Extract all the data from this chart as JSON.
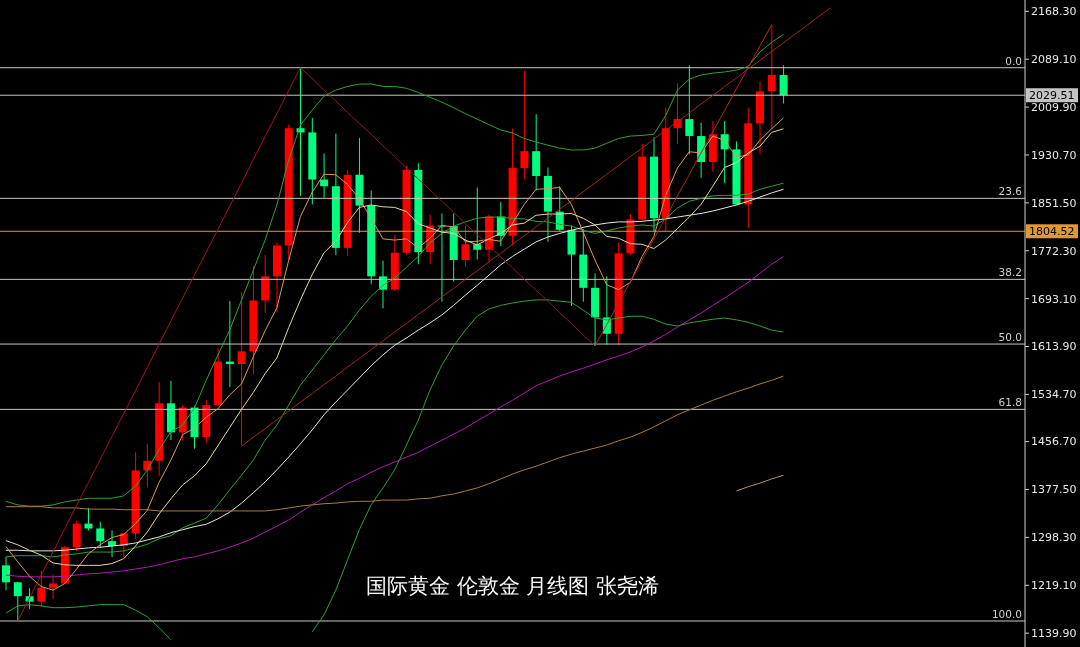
{
  "chart_data": {
    "type": "candlestick",
    "title": "国际黄金 伦敦金 月线图 张尧浠",
    "categories": [
      null,
      null,
      null,
      null,
      null,
      null,
      null,
      null,
      null,
      null,
      null,
      null,
      null,
      null,
      null,
      null,
      null,
      null,
      null,
      null,
      null,
      null,
      null,
      null,
      null,
      null,
      null,
      null,
      null,
      null,
      null,
      null,
      null,
      null,
      null,
      null,
      null,
      null,
      null,
      null,
      null,
      null,
      null,
      null,
      null,
      null,
      null,
      null,
      null,
      null,
      null,
      null,
      null,
      null,
      null,
      null,
      null,
      null,
      null,
      null,
      null,
      null,
      null,
      null,
      null,
      null,
      null,
      null,
      null,
      null,
      null,
      null,
      null,
      null,
      null,
      null,
      null,
      null,
      null,
      null,
      null,
      null,
      null,
      null,
      null,
      null,
      null
    ],
    "ohlc": [
      [
        1252,
        1266,
        1211,
        1224
      ],
      [
        1224,
        1225,
        1160,
        1201
      ],
      [
        1201,
        1214,
        1180,
        1192
      ],
      [
        1192,
        1243,
        1183,
        1215
      ],
      [
        1215,
        1237,
        1196,
        1222
      ],
      [
        1222,
        1284,
        1221,
        1282
      ],
      [
        1282,
        1326,
        1276,
        1321
      ],
      [
        1321,
        1347,
        1310,
        1313
      ],
      [
        1313,
        1324,
        1281,
        1292
      ],
      [
        1292,
        1310,
        1266,
        1284
      ],
      [
        1284,
        1306,
        1266,
        1305
      ],
      [
        1305,
        1439,
        1296,
        1409
      ],
      [
        1409,
        1453,
        1381,
        1425
      ],
      [
        1425,
        1555,
        1400,
        1520
      ],
      [
        1520,
        1557,
        1459,
        1472
      ],
      [
        1472,
        1517,
        1458,
        1513
      ],
      [
        1513,
        1516,
        1445,
        1464
      ],
      [
        1464,
        1525,
        1454,
        1517
      ],
      [
        1517,
        1611,
        1516,
        1589
      ],
      [
        1589,
        1689,
        1547,
        1585
      ],
      [
        1585,
        1704,
        1451,
        1606
      ],
      [
        1606,
        1747,
        1568,
        1690
      ],
      [
        1690,
        1765,
        1670,
        1730
      ],
      [
        1730,
        1786,
        1671,
        1781
      ],
      [
        1781,
        1981,
        1757,
        1975
      ],
      [
        1975,
        2075,
        1863,
        1968
      ],
      [
        1968,
        1992,
        1849,
        1890
      ],
      [
        1890,
        1933,
        1860,
        1879
      ],
      [
        1879,
        1966,
        1765,
        1777
      ],
      [
        1777,
        1906,
        1764,
        1898
      ],
      [
        1898,
        1959,
        1802,
        1847
      ],
      [
        1847,
        1872,
        1717,
        1730
      ],
      [
        1730,
        1756,
        1677,
        1708
      ],
      [
        1708,
        1798,
        1706,
        1769
      ],
      [
        1769,
        1913,
        1766,
        1906
      ],
      [
        1906,
        1917,
        1750,
        1770
      ],
      [
        1770,
        1832,
        1750,
        1814
      ],
      [
        1814,
        1834,
        1688,
        1813
      ],
      [
        1813,
        1834,
        1721,
        1757
      ],
      [
        1757,
        1814,
        1746,
        1783
      ],
      [
        1783,
        1877,
        1758,
        1774
      ],
      [
        1774,
        1832,
        1753,
        1829
      ],
      [
        1829,
        1853,
        1780,
        1797
      ],
      [
        1797,
        1974,
        1781,
        1909
      ],
      [
        1909,
        2070,
        1890,
        1937
      ],
      [
        1937,
        1998,
        1872,
        1896
      ],
      [
        1896,
        1910,
        1787,
        1837
      ],
      [
        1837,
        1879,
        1805,
        1807
      ],
      [
        1807,
        1814,
        1681,
        1766
      ],
      [
        1766,
        1808,
        1688,
        1711
      ],
      [
        1711,
        1735,
        1615,
        1662
      ],
      [
        1662,
        1730,
        1617,
        1635
      ],
      [
        1635,
        1786,
        1616,
        1768
      ],
      [
        1768,
        1833,
        1765,
        1824
      ],
      [
        1824,
        1949,
        1823,
        1928
      ],
      [
        1928,
        1960,
        1804,
        1826
      ],
      [
        1826,
        2009,
        1804,
        1975
      ],
      [
        1975,
        2049,
        1949,
        1990
      ],
      [
        1990,
        2079,
        1932,
        1962
      ],
      [
        1962,
        1984,
        1893,
        1919
      ],
      [
        1919,
        1987,
        1903,
        1965
      ],
      [
        1965,
        1987,
        1884,
        1940
      ],
      [
        1940,
        1953,
        1848,
        1849
      ],
      [
        1849,
        2009,
        1810,
        1983
      ],
      [
        1983,
        2052,
        1932,
        2036
      ],
      [
        2036,
        2146,
        1973,
        2063
      ],
      [
        2063,
        2079,
        2016,
        2029.51
      ],
      null,
      null,
      null,
      null,
      null,
      null,
      null,
      null,
      null,
      null,
      null,
      null,
      null,
      null,
      null,
      null,
      null,
      null,
      null,
      null
    ],
    "colors": [
      "#00ff7f",
      "#00ff7f",
      "#00ff7f",
      "#ff0000",
      "#ff0000",
      "#ff0000",
      "#ff0000",
      "#00ff7f",
      "#00ff7f",
      "#00ff7f",
      "#ff0000",
      "#ff0000",
      "#ff0000",
      "#ff0000",
      "#00ff7f",
      "#ff0000",
      "#00ff7f",
      "#ff0000",
      "#ff0000",
      "#00ff7f",
      "#ff0000",
      "#ff0000",
      "#ff0000",
      "#ff0000",
      "#ff0000",
      "#00ff7f",
      "#00ff7f",
      "#00ff7f",
      "#00ff7f",
      "#ff0000",
      "#00ff7f",
      "#00ff7f",
      "#00ff7f",
      "#ff0000",
      "#ff0000",
      "#00ff7f",
      "#ff0000",
      "#00ff7f",
      "#00ff7f",
      "#ff0000",
      "#00ff7f",
      "#ff0000",
      "#00ff7f",
      "#ff0000",
      "#ff0000",
      "#00ff7f",
      "#00ff7f",
      "#00ff7f",
      "#00ff7f",
      "#00ff7f",
      "#00ff7f",
      "#00ff7f",
      "#ff0000",
      "#ff0000",
      "#ff0000",
      "#00ff7f",
      "#ff0000",
      "#ff0000",
      "#00ff7f",
      "#00ff7f",
      "#ff0000",
      "#00ff7f",
      "#00ff7f",
      "#ff0000",
      "#ff0000",
      "#ff0000",
      "#00ff7f",
      null,
      null,
      null,
      null,
      null,
      null,
      null,
      null,
      null,
      null,
      null,
      null,
      null,
      null,
      null,
      null,
      null,
      null,
      null,
      null
    ],
    "series": [
      {
        "type": "line",
        "color": "#33a033",
        "values": [
          1358,
          1352,
          1350,
          1350,
          1352,
          1357,
          1360,
          1363,
          1363,
          1363,
          1367,
          1383,
          1410,
          1443,
          1473,
          1484,
          1512,
          1558,
          1600,
          1641,
          1691,
          1740,
          1790,
          1848,
          1922,
          1980,
          2005,
          2028,
          2038,
          2044,
          2048,
          2048,
          2044,
          2044,
          2041,
          2034,
          2026,
          2018,
          2009,
          1999,
          1990,
          1981,
          1972,
          1967,
          1958,
          1952,
          1947,
          1942,
          1939,
          1939,
          1942,
          1950,
          1958,
          1962,
          1963,
          1965,
          1996,
          2038,
          2056,
          2063,
          2066,
          2068,
          2071,
          2077,
          2101,
          2117,
          2130,
          null,
          null,
          null,
          null,
          null,
          null,
          null,
          null,
          null,
          null,
          null,
          null,
          null,
          null,
          null,
          null,
          null,
          null,
          null,
          null
        ]
      },
      {
        "type": "line",
        "color": "#33a033",
        "values": [
          1173,
          1185,
          1187,
          1185,
          1182,
          1182,
          1183,
          1185,
          1187,
          1187,
          1187,
          1178,
          1167,
          1149,
          1129,
          null,
          null,
          null,
          null,
          null,
          null,
          null,
          null,
          null,
          null,
          null,
          1142,
          1170,
          1211,
          1261,
          1311,
          1352,
          1380,
          1410,
          1451,
          1492,
          1542,
          1583,
          1615,
          1641,
          1664,
          1676,
          1682,
          1686,
          1689,
          1691,
          1691,
          1689,
          1687,
          1674,
          1661,
          1658,
          1661,
          1664,
          1664,
          1659,
          1651,
          1648,
          1653,
          1656,
          1659,
          1661,
          1658,
          1654,
          1648,
          1641,
          1638,
          null,
          null,
          null,
          null,
          null,
          null,
          null,
          null,
          null,
          null,
          null,
          null,
          null,
          null,
          null,
          null,
          null,
          null,
          null,
          null
        ]
      },
      {
        "type": "line",
        "color": "#33a033",
        "values": [
          1266,
          1268,
          1268,
          1268,
          1266,
          1269,
          1271,
          1274,
          1274,
          1274,
          1276,
          1281,
          1287,
          1296,
          1301,
          1314,
          1322,
          1330,
          1352,
          1377,
          1401,
          1426,
          1459,
          1484,
          1517,
          1550,
          1575,
          1600,
          1625,
          1648,
          1674,
          1697,
          1715,
          1727,
          1745,
          1763,
          1785,
          1801,
          1813,
          1820,
          1826,
          1828,
          1828,
          1826,
          1825,
          1821,
          1820,
          1816,
          1813,
          1806,
          1801,
          1805,
          1810,
          1813,
          1815,
          1813,
          1825,
          1843,
          1854,
          1859,
          1863,
          1864,
          1864,
          1866,
          1874,
          1879,
          1884,
          null,
          null,
          null,
          null,
          null,
          null,
          null,
          null,
          null,
          null,
          null,
          null,
          null,
          null,
          null,
          null,
          null,
          null,
          null,
          null
        ]
      },
      {
        "type": "line",
        "color": "#e6e6e6",
        "values": [
          1277,
          1277,
          1276,
          1276,
          1276,
          1277,
          1279,
          1281,
          1282,
          1284,
          1286,
          1289,
          1294,
          1299,
          1306,
          1311,
          1316,
          1320,
          1329,
          1340,
          1355,
          1372,
          1390,
          1410,
          1431,
          1453,
          1476,
          1501,
          1522,
          1542,
          1562,
          1582,
          1600,
          1616,
          1628,
          1641,
          1653,
          1666,
          1682,
          1699,
          1715,
          1732,
          1749,
          1763,
          1775,
          1787,
          1795,
          1801,
          1806,
          1811,
          1815,
          1818,
          1820,
          1820,
          1821,
          1823,
          1825,
          1828,
          1831,
          1834,
          1838,
          1843,
          1848,
          1854,
          1861,
          1868,
          1874,
          null,
          null,
          null,
          null,
          null,
          null,
          null,
          null,
          null,
          null,
          null,
          null,
          null,
          null,
          null,
          null,
          null,
          null,
          null,
          null
        ]
      },
      {
        "type": "line",
        "color": "#b01cb0",
        "values": [
          1236,
          1234,
          1233,
          1233,
          1233,
          1234,
          1236,
          1238,
          1239,
          1241,
          1243,
          1246,
          1249,
          1253,
          1258,
          1263,
          1266,
          1271,
          1276,
          1282,
          1289,
          1297,
          1307,
          1317,
          1327,
          1340,
          1352,
          1364,
          1375,
          1387,
          1396,
          1406,
          1415,
          1423,
          1431,
          1439,
          1449,
          1459,
          1469,
          1479,
          1491,
          1502,
          1514,
          1525,
          1537,
          1549,
          1557,
          1565,
          1572,
          1578,
          1585,
          1592,
          1598,
          1605,
          1613,
          1623,
          1634,
          1646,
          1658,
          1669,
          1682,
          1694,
          1707,
          1720,
          1735,
          1750,
          1763,
          null,
          null,
          null,
          null,
          null,
          null,
          null,
          null,
          null,
          null,
          null,
          null,
          null,
          null,
          null,
          null,
          null,
          null,
          null,
          null
        ]
      },
      {
        "type": "line",
        "color": "#a87b45",
        "values": [
          1349,
          1349,
          1349,
          1349,
          1347,
          1347,
          1347,
          1345,
          1345,
          1345,
          1344,
          1344,
          1344,
          1342,
          1342,
          1342,
          1342,
          1342,
          1342,
          1342,
          1342,
          1342,
          1342,
          1344,
          1347,
          1350,
          1352,
          1354,
          1355,
          1357,
          1358,
          1358,
          1360,
          1360,
          1360,
          1362,
          1363,
          1367,
          1370,
          1375,
          1380,
          1387,
          1395,
          1403,
          1410,
          1416,
          1423,
          1430,
          1436,
          1441,
          1446,
          1451,
          1458,
          1464,
          1472,
          1481,
          1491,
          1501,
          1509,
          1517,
          1525,
          1532,
          1539,
          1545,
          1552,
          1558,
          1565,
          null,
          null,
          null,
          null,
          null,
          null,
          null,
          null,
          null,
          null,
          null,
          null,
          null,
          null,
          null,
          null,
          null,
          null,
          null,
          null
        ]
      },
      {
        "type": "line",
        "color": "#b09060",
        "values": [
          null,
          null,
          null,
          null,
          null,
          null,
          null,
          null,
          null,
          null,
          null,
          null,
          null,
          null,
          null,
          null,
          null,
          null,
          null,
          null,
          null,
          null,
          null,
          null,
          null,
          null,
          null,
          null,
          null,
          null,
          null,
          null,
          null,
          null,
          null,
          null,
          null,
          null,
          null,
          null,
          null,
          null,
          null,
          null,
          null,
          null,
          null,
          null,
          null,
          null,
          null,
          null,
          null,
          null,
          null,
          null,
          null,
          null,
          null,
          null,
          null,
          null,
          1375,
          1382,
          1388,
          1395,
          1401,
          null,
          null,
          null,
          null,
          null,
          null,
          null,
          null,
          null,
          null,
          null,
          null,
          null,
          null,
          null,
          null,
          null,
          null,
          null,
          null
        ]
      },
      {
        "type": "line",
        "color": "#d89a5a",
        "values": [
          1283,
          1258,
          1234,
          1217,
          1211,
          1222,
          1246,
          1271,
          1286,
          1298,
          1303,
          1321,
          1343,
          1389,
          1426,
          1468,
          1479,
          1497,
          1511,
          1534,
          1552,
          1597,
          1640,
          1678,
          1756,
          1829,
          1869,
          1899,
          1898,
          1882,
          1858,
          1826,
          1792,
          1790,
          1792,
          1777,
          1793,
          1814,
          1812,
          1787,
          1788,
          1791,
          1788,
          1818,
          1849,
          1874,
          1875,
          1877,
          1849,
          1803,
          1757,
          1716,
          1708,
          1720,
          1763,
          1796,
          1864,
          1909,
          1936,
          1934,
          1962,
          1955,
          1927,
          1931,
          1955,
          1974,
          1992,
          null,
          null,
          null,
          null,
          null,
          null,
          null,
          null,
          null,
          null,
          null,
          null,
          null,
          null,
          null,
          null,
          null,
          null,
          null,
          null
        ]
      },
      {
        "type": "line",
        "color": "#e8d8a0",
        "values": [
          1293,
          1286,
          1277,
          1269,
          1256,
          1253,
          1252,
          1252,
          1252,
          1255,
          1263,
          1284,
          1307,
          1337,
          1362,
          1385,
          1400,
          1420,
          1450,
          1480,
          1510,
          1538,
          1569,
          1595,
          1645,
          1691,
          1733,
          1769,
          1788,
          1819,
          1844,
          1848,
          1845,
          1844,
          1837,
          1817,
          1810,
          1803,
          1801,
          1790,
          1782,
          1792,
          1801,
          1815,
          1818,
          1831,
          1833,
          1833,
          1834,
          1826,
          1815,
          1796,
          1793,
          1784,
          1783,
          1776,
          1790,
          1809,
          1828,
          1849,
          1879,
          1910,
          1918,
          1934,
          1945,
          1968,
          1974,
          null,
          null,
          null,
          null,
          null,
          null,
          null,
          null,
          null,
          null,
          null,
          null,
          null,
          null,
          null,
          null,
          null,
          null,
          null,
          null
        ]
      },
      {
        "type": "line",
        "color": "#a01818",
        "values": [
          null,
          1160,
          1198,
          1236,
          1274,
          1313,
          1351,
          1389,
          1427,
          1465,
          1503,
          1541,
          1579,
          1618,
          1656,
          1694,
          1732,
          1770,
          1808,
          1846,
          1884,
          1923,
          1961,
          1999,
          2037,
          2075,
          null,
          null,
          null,
          null,
          null,
          null,
          null,
          null,
          null,
          null,
          null,
          null,
          null,
          null,
          null,
          null,
          null,
          null,
          null,
          null,
          null,
          null,
          null,
          null,
          null,
          null,
          null,
          null,
          null,
          null,
          null,
          null,
          null,
          null,
          null,
          null,
          null,
          null,
          null,
          null,
          null,
          null,
          null,
          null,
          null,
          null,
          null,
          null,
          null,
          null,
          null,
          null,
          null,
          null,
          null,
          null,
          null,
          null,
          null,
          null,
          null
        ]
      },
      {
        "type": "line",
        "color": "#8c1c1c",
        "values": [
          null,
          null,
          null,
          null,
          null,
          null,
          null,
          null,
          null,
          null,
          null,
          null,
          null,
          null,
          null,
          null,
          null,
          null,
          null,
          null,
          null,
          null,
          null,
          null,
          null,
          2075,
          2057,
          2038,
          2020,
          2001,
          1983,
          1965,
          1946,
          1928,
          1909,
          1891,
          1873,
          1854,
          1836,
          1817,
          1799,
          1781,
          1762,
          1744,
          1725,
          1707,
          1689,
          1670,
          1652,
          1633,
          1615,
          null,
          null,
          null,
          null,
          null,
          null,
          null,
          null,
          null,
          null,
          null,
          null,
          null,
          null,
          null,
          null,
          null,
          null,
          null,
          null,
          null,
          null,
          null,
          null,
          null,
          null,
          null,
          null,
          null,
          null,
          null,
          null,
          null,
          null,
          null,
          null
        ]
      },
      {
        "type": "line",
        "color": "#9c2a1c",
        "values": [
          null,
          null,
          null,
          null,
          null,
          null,
          null,
          null,
          null,
          null,
          null,
          null,
          null,
          null,
          null,
          null,
          null,
          null,
          null,
          null,
          1449,
          1464,
          1478,
          1493,
          1507,
          1522,
          1536,
          1551,
          1565,
          1580,
          1594,
          1609,
          1623,
          1638,
          1652,
          1667,
          1681,
          1696,
          1710,
          1725,
          1739,
          1754,
          1768,
          1783,
          1797,
          1812,
          1826,
          1841,
          1855,
          1870,
          1884,
          1899,
          1913,
          1928,
          1942,
          1957,
          1971,
          1986,
          2000,
          2015,
          2029,
          2044,
          2058,
          2073,
          2087,
          2102,
          2116,
          2131,
          2145,
          2160,
          2174,
          null,
          null,
          null,
          null,
          null,
          null,
          null,
          null,
          null,
          null,
          null,
          null,
          null,
          null,
          null,
          null
        ]
      },
      {
        "type": "line",
        "color": "#b02818",
        "values": [
          null,
          null,
          null,
          null,
          null,
          null,
          null,
          null,
          null,
          null,
          null,
          null,
          null,
          null,
          null,
          null,
          null,
          null,
          null,
          null,
          null,
          null,
          null,
          null,
          null,
          null,
          null,
          null,
          null,
          null,
          null,
          null,
          null,
          null,
          null,
          null,
          null,
          null,
          null,
          null,
          null,
          null,
          null,
          null,
          null,
          null,
          null,
          null,
          null,
          null,
          1615,
          1650,
          1686,
          1721,
          1757,
          1792,
          1827,
          1863,
          1898,
          1934,
          1969,
          2004,
          2040,
          2075,
          2111,
          2146,
          null,
          null,
          null,
          null,
          null,
          null,
          null,
          null,
          null,
          null,
          null,
          null,
          null,
          null,
          null,
          null,
          null,
          null,
          null,
          null,
          null
        ]
      }
    ],
    "ylim": [
      1117,
      2187
    ],
    "yticks": [
      {
        "value": 1139.9,
        "label": "1139.90"
      },
      {
        "value": 1219.1,
        "label": "1219.10"
      },
      {
        "value": 1298.3,
        "label": "1298.30"
      },
      {
        "value": 1377.5,
        "label": "1377.50"
      },
      {
        "value": 1456.7,
        "label": "1456.70"
      },
      {
        "value": 1534.7,
        "label": "1534.70"
      },
      {
        "value": 1613.9,
        "label": "1613.90"
      },
      {
        "value": 1693.1,
        "label": "1693.10"
      },
      {
        "value": 1772.3,
        "label": "1772.30"
      },
      {
        "value": 1851.5,
        "label": "1851.50"
      },
      {
        "value": 1930.7,
        "label": "1930.70"
      },
      {
        "value": 2009.9,
        "label": "2009.90"
      },
      {
        "value": 2089.1,
        "label": "2089.10"
      },
      {
        "value": 2168.3,
        "label": "2168.30"
      }
    ],
    "tick_labels": "y",
    "ref_lines": [
      {
        "axis": "y",
        "value": 2075,
        "color": "#c8c8c8"
      },
      {
        "axis": "y",
        "value": 1859,
        "color": "#c8c8c8"
      },
      {
        "axis": "y",
        "value": 1725,
        "color": "#c8c8c8"
      },
      {
        "axis": "y",
        "value": 1618,
        "color": "#c8c8c8"
      },
      {
        "axis": "y",
        "value": 1510,
        "color": "#c8c8c8"
      },
      {
        "axis": "y",
        "value": 1160,
        "color": "#c8c8c8"
      },
      {
        "axis": "y",
        "value": 2029.51,
        "label": "2029.51",
        "color": "#c4c4c4"
      },
      {
        "axis": "y",
        "value": 1804.52,
        "label": "1804.52",
        "color": "#e09a30"
      }
    ],
    "annotations": [
      {
        "text": "0.0",
        "y": 2075
      },
      {
        "text": "23.6",
        "y": 1859
      },
      {
        "text": "38.2",
        "y": 1725
      },
      {
        "text": "50.0",
        "y": 1618
      },
      {
        "text": "61.8",
        "y": 1510
      },
      {
        "text": "100.0",
        "y": 1160
      }
    ]
  }
}
